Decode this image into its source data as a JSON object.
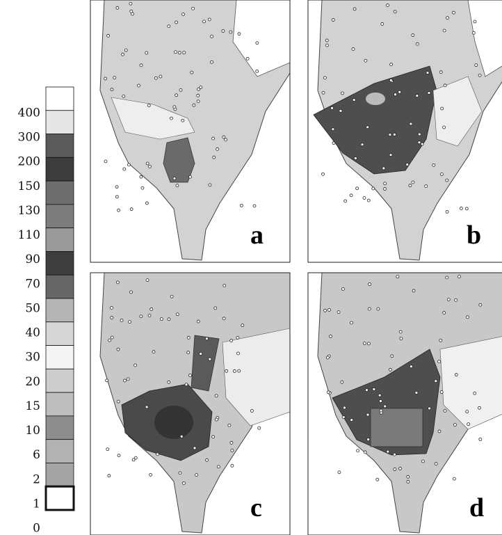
{
  "colorbar": {
    "labels": [
      400,
      300,
      200,
      150,
      130,
      110,
      90,
      70,
      50,
      40,
      30,
      20,
      15,
      10,
      6,
      2,
      1,
      0
    ],
    "colors": [
      "#ffffff",
      "#e6e6e6",
      "#5a5a5a",
      "#3c3c3c",
      "#6e6e6e",
      "#7c7c7c",
      "#9a9a9a",
      "#3e3e3e",
      "#666666",
      "#b4b4b4",
      "#d6d6d6",
      "#f4f4f4",
      "#cdcdcd",
      "#bdbdbd",
      "#8e8e8e",
      "#b2b2b2",
      "#a4a4a4",
      "#ffffff"
    ]
  },
  "panels": [
    {
      "label": "a"
    },
    {
      "label": "b"
    },
    {
      "label": "c"
    },
    {
      "label": "d"
    }
  ]
}
